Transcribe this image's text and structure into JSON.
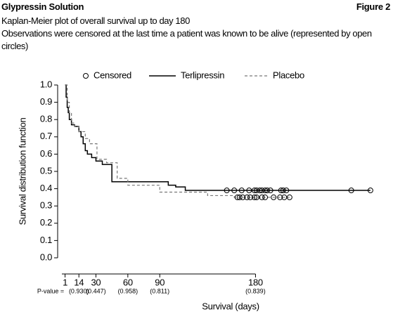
{
  "chart_data": {
    "type": "step",
    "header": "Glypressin Solution",
    "figure_label": "Figure 2",
    "title": "Kaplan-Meier plot of overall survival up to day 180",
    "subtitle": "Observations were censored at the last time a patient was known to be alive (represented by open circles)",
    "x_label": "Survival (days)",
    "y_label": "Survival distribution function",
    "censored_label": "Censored",
    "xlim": [
      -2,
      296
    ],
    "ylim": [
      0,
      1
    ],
    "xticks": [
      1,
      14,
      30,
      60,
      90,
      180
    ],
    "pvalue_label": "P-value =",
    "pvalues": [
      null,
      "(0.930)",
      "(0.447)",
      "(0.958)",
      "(0.811)",
      "(0.839)"
    ],
    "yticks": [
      {
        "value": 0,
        "label": "0.0"
      },
      {
        "value": 0.1,
        "label": "0.1"
      },
      {
        "value": 0.2,
        "label": "0.2"
      },
      {
        "value": 0.3,
        "label": "0.3"
      },
      {
        "value": 0.4,
        "label": "0.4"
      },
      {
        "value": 0.5,
        "label": "0.5"
      },
      {
        "value": 0.6,
        "label": "0.6"
      },
      {
        "value": 0.7,
        "label": "0.7"
      },
      {
        "value": 0.8,
        "label": "0.8"
      },
      {
        "value": 0.9,
        "label": "0.9"
      },
      {
        "value": 1,
        "label": "1.0"
      }
    ],
    "series": [
      {
        "name": "Terlipressin",
        "color": "#000000",
        "dashed": false,
        "x": [
          1,
          2,
          3,
          4,
          5,
          7,
          10,
          14,
          16,
          18,
          20,
          22,
          26,
          30,
          36,
          45,
          98,
          105,
          114,
          288
        ],
        "values": [
          1.0,
          0.93,
          0.87,
          0.84,
          0.8,
          0.77,
          0.76,
          0.73,
          0.7,
          0.66,
          0.62,
          0.6,
          0.58,
          0.56,
          0.54,
          0.44,
          0.42,
          0.41,
          0.39,
          0.39
        ],
        "censored_x": [
          153,
          160,
          167,
          174,
          179,
          181,
          184,
          186,
          189,
          191,
          194,
          204,
          206,
          209,
          270,
          288
        ],
        "censored_y": [
          0.39,
          0.39,
          0.39,
          0.39,
          0.39,
          0.39,
          0.39,
          0.39,
          0.39,
          0.39,
          0.39,
          0.39,
          0.39,
          0.39,
          0.39,
          0.39
        ]
      },
      {
        "name": "Placebo",
        "color": "#777777",
        "dashed": true,
        "x": [
          1,
          3,
          5,
          7,
          10,
          14,
          20,
          24,
          31,
          40,
          50,
          60,
          90,
          135,
          160,
          212
        ],
        "values": [
          1.0,
          0.9,
          0.84,
          0.78,
          0.76,
          0.73,
          0.69,
          0.66,
          0.57,
          0.55,
          0.46,
          0.42,
          0.38,
          0.36,
          0.35,
          0.35
        ],
        "censored_x": [
          163,
          165,
          168,
          172,
          175,
          179,
          181,
          186,
          189,
          197,
          203,
          207,
          212
        ],
        "censored_y": [
          0.35,
          0.35,
          0.35,
          0.35,
          0.35,
          0.35,
          0.35,
          0.35,
          0.35,
          0.35,
          0.35,
          0.35,
          0.35
        ]
      }
    ]
  }
}
